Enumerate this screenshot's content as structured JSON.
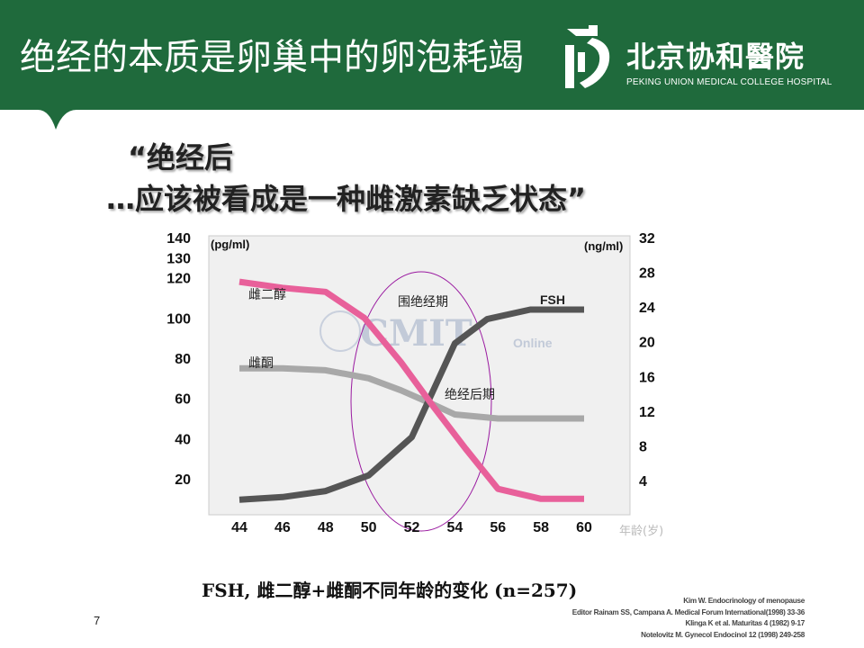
{
  "slide": {
    "title": "绝经的本质是卵巢中的卵泡耗竭",
    "logo_cn": "北京协和醫院",
    "logo_en": "PEKING UNION MEDICAL COLLEGE HOSPITAL",
    "quote_line1": "“绝经后",
    "quote_line2": "…应该被看成是一种雌激素缺乏状态”",
    "caption": "FSH, 雌二醇+雌酮不同年龄的变化 (n=257)",
    "page_number": "7",
    "references": [
      "Kim W. Endocrinology of menopause",
      "Editor Rainam SS, Campana A. Medical Forum International(1998) 33-36",
      "Klinga K et al. Maturitas 4 (1982) 9-17",
      "Notelovitz M. Gynecol Endocinol 12 (1998) 249-258"
    ],
    "colors": {
      "banner": "#1f6a3c",
      "estradiol": "#e8609a",
      "estrone": "#a8a8a8",
      "fsh": "#555555",
      "plot_bg": "#f0f0f0",
      "ellipse": "#9a1aa0"
    }
  },
  "chart_data": {
    "type": "line",
    "x": [
      44,
      46,
      48,
      50,
      52,
      54,
      56,
      58,
      60
    ],
    "xlabel": "年龄(岁)",
    "y_left_label": "(pg/ml)",
    "y_right_label": "(ng/ml)",
    "y_left_ticks": [
      20,
      40,
      60,
      80,
      100,
      120,
      130,
      140
    ],
    "y_right_ticks": [
      4,
      8,
      12,
      16,
      20,
      24,
      28,
      32
    ],
    "ylim_left": [
      0,
      140
    ],
    "ylim_right": [
      0,
      32
    ],
    "series": [
      {
        "name": "雌二醇",
        "axis": "left",
        "color": "#e8609a",
        "values": [
          118,
          115,
          113,
          100,
          78,
          56,
          35,
          15,
          10,
          10
        ],
        "x": [
          44,
          46,
          48,
          49.8,
          51.5,
          53,
          54.5,
          56,
          58,
          60
        ]
      },
      {
        "name": "雌酮",
        "axis": "left",
        "color": "#a8a8a8",
        "values": [
          75,
          75,
          74,
          70,
          64,
          57,
          52,
          50,
          50,
          50
        ],
        "x": [
          44,
          46,
          48,
          50,
          51.5,
          53,
          54,
          56,
          58,
          60
        ]
      },
      {
        "name": "FSH",
        "axis": "right",
        "color": "#555555",
        "values": [
          1.8,
          2.1,
          2.8,
          4.6,
          9,
          19.8,
          22.6,
          23.7,
          23.7,
          23.7
        ],
        "x": [
          44,
          46,
          48,
          50,
          52,
          54,
          55.5,
          57.5,
          58,
          60
        ]
      }
    ],
    "annotations": [
      "围绝经期",
      "绝经后期"
    ],
    "watermark": [
      "CMIT",
      "Online"
    ]
  }
}
